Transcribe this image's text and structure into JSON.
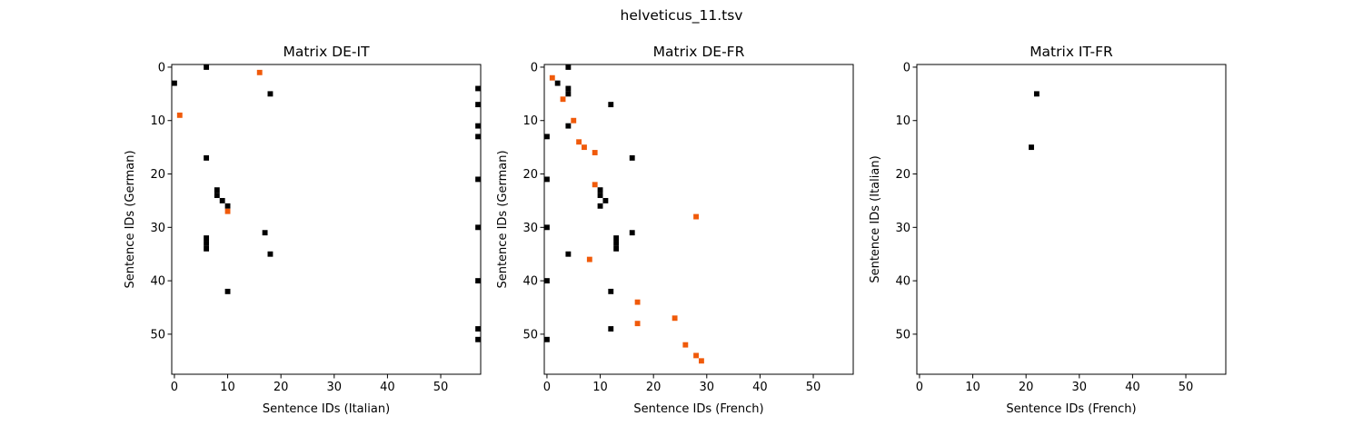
{
  "figure": {
    "suptitle": "helveticus_11.tsv"
  },
  "colors": {
    "black": "#000000",
    "orange": "#f05a0a",
    "background": "#ffffff"
  },
  "chart_data": [
    {
      "type": "heatmap",
      "title": "Matrix DE-IT",
      "xlabel": "Sentence IDs (Italian)",
      "ylabel": "Sentence IDs (German)",
      "xlim": [
        -0.5,
        57.5
      ],
      "ylim": [
        57.5,
        -0.5
      ],
      "xticks": [
        0,
        10,
        20,
        30,
        40,
        50
      ],
      "yticks": [
        0,
        10,
        20,
        30,
        40,
        50
      ],
      "y_inverted": true,
      "grid": false,
      "points": [
        {
          "x": 6,
          "y": 0,
          "color": "black"
        },
        {
          "x": 16,
          "y": 1,
          "color": "orange"
        },
        {
          "x": 0,
          "y": 3,
          "color": "black"
        },
        {
          "x": 18,
          "y": 5,
          "color": "black"
        },
        {
          "x": 57,
          "y": 4,
          "color": "black"
        },
        {
          "x": 57,
          "y": 7,
          "color": "black"
        },
        {
          "x": 1,
          "y": 9,
          "color": "orange"
        },
        {
          "x": 57,
          "y": 11,
          "color": "black"
        },
        {
          "x": 57,
          "y": 13,
          "color": "black"
        },
        {
          "x": 6,
          "y": 17,
          "color": "black"
        },
        {
          "x": 57,
          "y": 21,
          "color": "black"
        },
        {
          "x": 8,
          "y": 23,
          "color": "black"
        },
        {
          "x": 8,
          "y": 24,
          "color": "black"
        },
        {
          "x": 9,
          "y": 25,
          "color": "black"
        },
        {
          "x": 10,
          "y": 26,
          "color": "black"
        },
        {
          "x": 10,
          "y": 27,
          "color": "orange"
        },
        {
          "x": 57,
          "y": 30,
          "color": "black"
        },
        {
          "x": 17,
          "y": 31,
          "color": "black"
        },
        {
          "x": 6,
          "y": 32,
          "color": "black"
        },
        {
          "x": 6,
          "y": 33,
          "color": "black"
        },
        {
          "x": 6,
          "y": 34,
          "color": "black"
        },
        {
          "x": 18,
          "y": 35,
          "color": "black"
        },
        {
          "x": 57,
          "y": 40,
          "color": "black"
        },
        {
          "x": 10,
          "y": 42,
          "color": "black"
        },
        {
          "x": 57,
          "y": 49,
          "color": "black"
        },
        {
          "x": 57,
          "y": 51,
          "color": "black"
        }
      ]
    },
    {
      "type": "heatmap",
      "title": "Matrix DE-FR",
      "xlabel": "Sentence IDs (French)",
      "ylabel": "Sentence IDs (German)",
      "xlim": [
        -0.5,
        57.5
      ],
      "ylim": [
        57.5,
        -0.5
      ],
      "xticks": [
        0,
        10,
        20,
        30,
        40,
        50
      ],
      "yticks": [
        0,
        10,
        20,
        30,
        40,
        50
      ],
      "y_inverted": true,
      "grid": false,
      "points": [
        {
          "x": 4,
          "y": 0,
          "color": "black"
        },
        {
          "x": 1,
          "y": 2,
          "color": "orange"
        },
        {
          "x": 2,
          "y": 3,
          "color": "black"
        },
        {
          "x": 4,
          "y": 4,
          "color": "black"
        },
        {
          "x": 4,
          "y": 5,
          "color": "black"
        },
        {
          "x": 3,
          "y": 6,
          "color": "orange"
        },
        {
          "x": 12,
          "y": 7,
          "color": "black"
        },
        {
          "x": 5,
          "y": 10,
          "color": "orange"
        },
        {
          "x": 4,
          "y": 11,
          "color": "black"
        },
        {
          "x": 0,
          "y": 13,
          "color": "black"
        },
        {
          "x": 6,
          "y": 14,
          "color": "orange"
        },
        {
          "x": 7,
          "y": 15,
          "color": "orange"
        },
        {
          "x": 9,
          "y": 16,
          "color": "orange"
        },
        {
          "x": 16,
          "y": 17,
          "color": "black"
        },
        {
          "x": 0,
          "y": 21,
          "color": "black"
        },
        {
          "x": 9,
          "y": 22,
          "color": "orange"
        },
        {
          "x": 10,
          "y": 23,
          "color": "black"
        },
        {
          "x": 10,
          "y": 24,
          "color": "black"
        },
        {
          "x": 11,
          "y": 25,
          "color": "black"
        },
        {
          "x": 10,
          "y": 26,
          "color": "black"
        },
        {
          "x": 28,
          "y": 28,
          "color": "orange"
        },
        {
          "x": 0,
          "y": 30,
          "color": "black"
        },
        {
          "x": 16,
          "y": 31,
          "color": "black"
        },
        {
          "x": 13,
          "y": 32,
          "color": "black"
        },
        {
          "x": 13,
          "y": 33,
          "color": "black"
        },
        {
          "x": 13,
          "y": 34,
          "color": "black"
        },
        {
          "x": 4,
          "y": 35,
          "color": "black"
        },
        {
          "x": 8,
          "y": 36,
          "color": "orange"
        },
        {
          "x": 0,
          "y": 40,
          "color": "black"
        },
        {
          "x": 12,
          "y": 42,
          "color": "black"
        },
        {
          "x": 17,
          "y": 44,
          "color": "orange"
        },
        {
          "x": 24,
          "y": 47,
          "color": "orange"
        },
        {
          "x": 17,
          "y": 48,
          "color": "orange"
        },
        {
          "x": 12,
          "y": 49,
          "color": "black"
        },
        {
          "x": 0,
          "y": 51,
          "color": "black"
        },
        {
          "x": 26,
          "y": 52,
          "color": "orange"
        },
        {
          "x": 28,
          "y": 54,
          "color": "orange"
        },
        {
          "x": 29,
          "y": 55,
          "color": "orange"
        }
      ]
    },
    {
      "type": "heatmap",
      "title": "Matrix IT-FR",
      "xlabel": "Sentence IDs (French)",
      "ylabel": "Sentence IDs (Italian)",
      "xlim": [
        -0.5,
        57.5
      ],
      "ylim": [
        57.5,
        -0.5
      ],
      "xticks": [
        0,
        10,
        20,
        30,
        40,
        50
      ],
      "yticks": [
        0,
        10,
        20,
        30,
        40,
        50
      ],
      "y_inverted": true,
      "grid": false,
      "points": [
        {
          "x": 22,
          "y": 5,
          "color": "black"
        },
        {
          "x": 21,
          "y": 15,
          "color": "black"
        }
      ]
    }
  ]
}
